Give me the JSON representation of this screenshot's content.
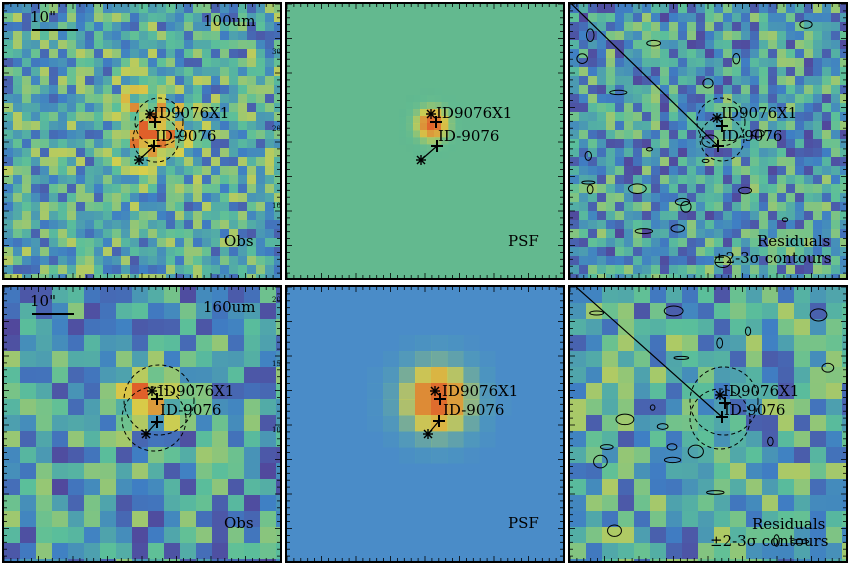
{
  "figure": {
    "colors": {
      "low": "#5b2a86",
      "mid_low": "#3f7fc4",
      "mid": "#5bbf9a",
      "mid_high": "#d8cf4a",
      "high": "#e0602a",
      "psf_bg_100": "#63b98f",
      "psf_bg_160": "#4a8cc8"
    },
    "rows": [
      {
        "band": "100um",
        "scale_label": "10\"",
        "panels": [
          {
            "kind": "obs",
            "label": "Obs"
          },
          {
            "kind": "psf",
            "label": "PSF"
          },
          {
            "kind": "residual",
            "label_line1": "Residuals",
            "label_line2": "±2-3σ contours"
          }
        ]
      },
      {
        "band": "160um",
        "scale_label": "10\"",
        "panels": [
          {
            "kind": "obs",
            "label": "Obs"
          },
          {
            "kind": "psf",
            "label": "PSF"
          },
          {
            "kind": "residual",
            "label_line1": "Residuals",
            "label_line2": "±2-3σ contours"
          }
        ]
      }
    ],
    "sources": {
      "primary": "ID9076X1",
      "secondary": "ID-9076"
    },
    "psf_axis_ticks": {
      "row1": [
        "30",
        "20",
        "10"
      ],
      "row2": [
        "20",
        "15",
        "10"
      ]
    }
  }
}
